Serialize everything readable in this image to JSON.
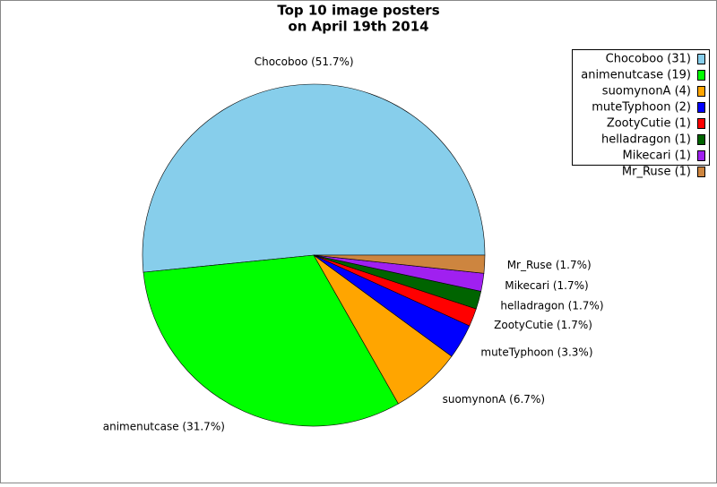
{
  "chart_data": {
    "type": "pie",
    "title": [
      "Top 10 image posters",
      "on April 19th 2014"
    ],
    "categories": [
      "Chocoboo (31)",
      "animenutcase (19)",
      "suomynonA (4)",
      "muteTyphoon (2)",
      "ZootyCutie (1)",
      "helladragon (1)",
      "Mikecari (1)",
      "Mr_Ruse (1)"
    ],
    "values": [
      51.7,
      31.7,
      6.7,
      3.3,
      1.7,
      1.7,
      1.7,
      1.7
    ],
    "value_labels": [
      "Chocoboo (51.7%)",
      "animenutcase (31.7%)",
      "suomynonA (6.7%)",
      "muteTyphoon (3.3%)",
      "ZootyCutie (1.7%)",
      "helladragon (1.7%)",
      "Mikecari (1.7%)",
      "Mr_Ruse (1.7%)"
    ],
    "colors": [
      "#87ceeb",
      "#00ff00",
      "#ffa500",
      "#0000ff",
      "#ff0000",
      "#006400",
      "#a020f0",
      "#cd853f"
    ],
    "legend": "upper right"
  }
}
